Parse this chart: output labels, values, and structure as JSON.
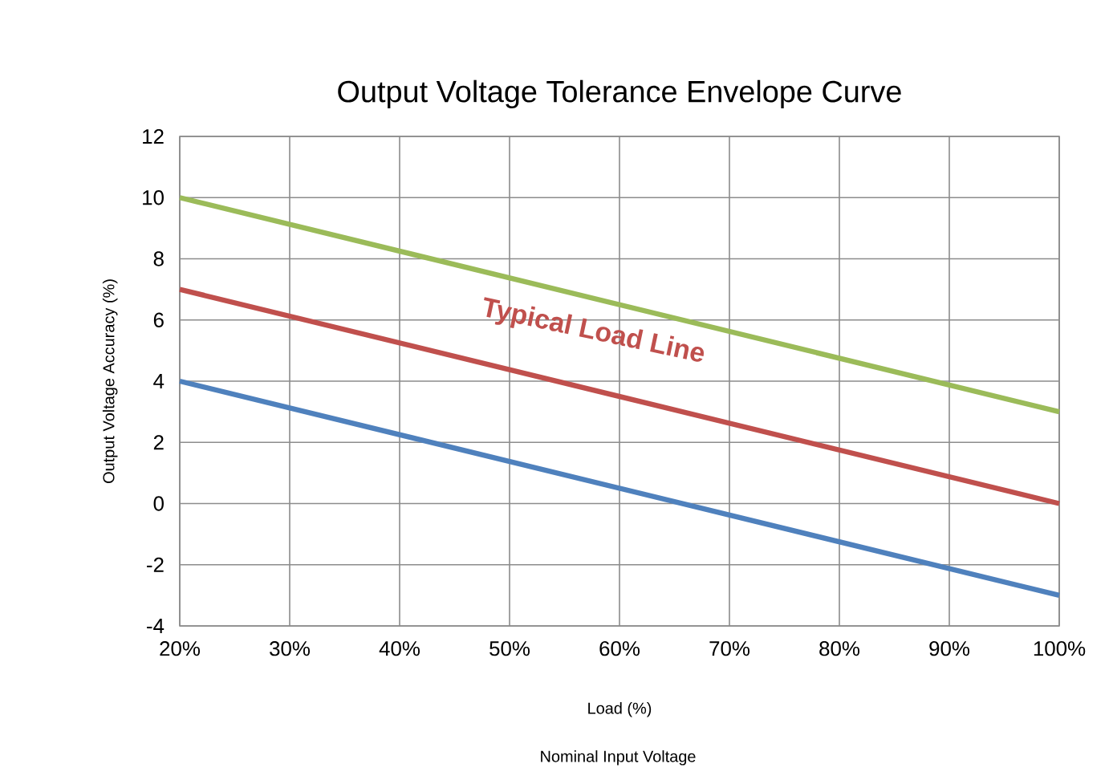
{
  "chart_data": {
    "type": "line",
    "title": "Output Voltage Tolerance Envelope Curve",
    "xlabel": "Load (%)",
    "ylabel": "Output Voltage Accuracy (%)",
    "annotations": [
      "Typical Load Line",
      "Nominal Input Voltage"
    ],
    "x": [
      20,
      100
    ],
    "series": [
      {
        "color": "#9bbb59",
        "values": [
          10,
          3
        ]
      },
      {
        "color": "#c0504d",
        "values": [
          7,
          0
        ]
      },
      {
        "color": "#4f81bd",
        "values": [
          4,
          -3
        ]
      }
    ],
    "xlim": [
      20,
      100
    ],
    "xticks": [
      {
        "value": 20,
        "label": "20%"
      },
      {
        "value": 30,
        "label": "30%"
      },
      {
        "value": 40,
        "label": "40%"
      },
      {
        "value": 50,
        "label": "50%"
      },
      {
        "value": 60,
        "label": "60%"
      },
      {
        "value": 70,
        "label": "70%"
      },
      {
        "value": 80,
        "label": "80%"
      },
      {
        "value": 90,
        "label": "90%"
      },
      {
        "value": 100,
        "label": "100%"
      }
    ],
    "ylim": [
      -4,
      12
    ],
    "yticks": [
      -4,
      -2,
      0,
      2,
      4,
      6,
      8,
      10,
      12
    ],
    "grid": true,
    "marker": "none",
    "line_style": "solid"
  }
}
